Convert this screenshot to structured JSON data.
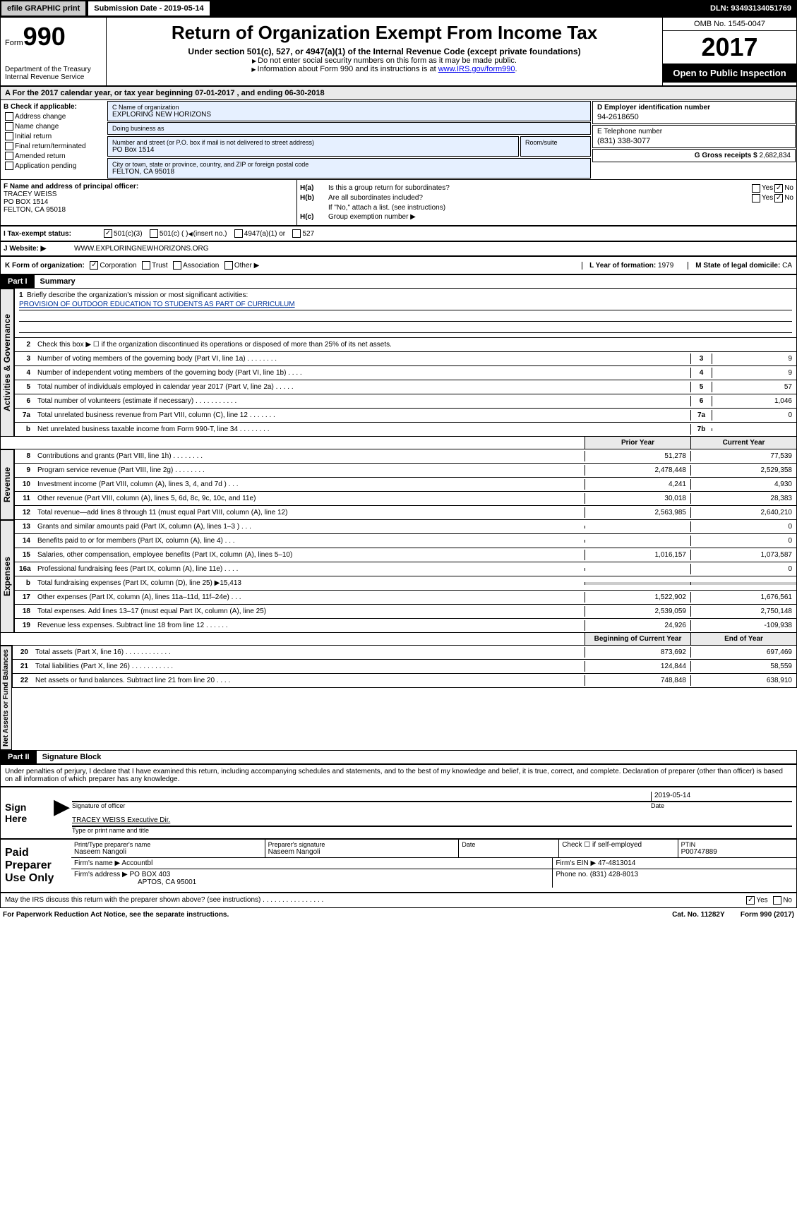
{
  "topbar": {
    "efile": "efile GRAPHIC print",
    "sub": "Submission Date - 2019-05-14",
    "dln": "DLN: 93493134051769"
  },
  "header": {
    "form_label": "Form",
    "form_num": "990",
    "dept": "Department of the Treasury\nInternal Revenue Service",
    "title": "Return of Organization Exempt From Income Tax",
    "sub1": "Under section 501(c), 527, or 4947(a)(1) of the Internal Revenue Code (except private foundations)",
    "sub2a": "Do not enter social security numbers on this form as it may be made public.",
    "sub2b": "Information about Form 990 and its instructions is at ",
    "link": "www.IRS.gov/form990",
    "omb": "OMB No. 1545-0047",
    "year": "2017",
    "open": "Open to Public Inspection"
  },
  "row_a": "A   For the 2017 calendar year, or tax year beginning 07-01-2017       , and ending 06-30-2018",
  "col_b": {
    "title": "B Check if applicable:",
    "items": [
      "Address change",
      "Name change",
      "Initial return",
      "Final return/terminated",
      "Amended return",
      "Application pending"
    ]
  },
  "col_c": {
    "name_lbl": "C Name of organization",
    "name": "EXPLORING NEW HORIZONS",
    "dba_lbl": "Doing business as",
    "dba": "",
    "addr_lbl": "Number and street (or P.O. box if mail is not delivered to street address)",
    "room_lbl": "Room/suite",
    "addr": "PO Box 1514",
    "city_lbl": "City or town, state or province, country, and ZIP or foreign postal code",
    "city": "FELTON, CA  95018"
  },
  "col_d": {
    "ein_lbl": "D Employer identification number",
    "ein": "94-2618650",
    "tel_lbl": "E Telephone number",
    "tel": "(831) 338-3077",
    "gross_lbl": "G Gross receipts $",
    "gross": "2,682,834"
  },
  "col_f": {
    "lbl": "F Name and address of principal officer:",
    "name": "TRACEY WEISS",
    "addr1": "PO BOX 1514",
    "addr2": "FELTON, CA  95018"
  },
  "col_h": {
    "ha_lbl": "H(a)",
    "ha_txt": "Is this a group return for subordinates?",
    "hb_lbl": "H(b)",
    "hb_txt": "Are all subordinates included?",
    "hb_note": "If \"No,\" attach a list. (see instructions)",
    "hc_lbl": "H(c)",
    "hc_txt": "Group exemption number ▶",
    "yes": "Yes",
    "no": "No"
  },
  "row_i": {
    "lbl": "I     Tax-exempt status:",
    "o1": "501(c)(3)",
    "o2": "501(c) (  )",
    "o2b": "(insert no.)",
    "o3": "4947(a)(1) or",
    "o4": "527"
  },
  "row_j": {
    "lbl": "J    Website: ▶",
    "val": "WWW.EXPLORINGNEWHORIZONS.ORG"
  },
  "row_k": {
    "lbl": "K Form of organization:",
    "o1": "Corporation",
    "o2": "Trust",
    "o3": "Association",
    "o4": "Other ▶",
    "l_lbl": "L Year of formation:",
    "l_val": "1979",
    "m_lbl": "M State of legal domicile:",
    "m_val": "CA"
  },
  "part1": {
    "hdr": "Part I",
    "title": "Summary",
    "vert1": "Activities & Governance",
    "vert2": "Revenue",
    "vert3": "Expenses",
    "vert4": "Net Assets or Fund Balances",
    "line1_lbl": "Briefly describe the organization's mission or most significant activities:",
    "line1_val": "PROVISION OF OUTDOOR EDUCATION TO STUDENTS AS PART OF CURRICULUM",
    "line2": "Check this box ▶ ☐  if the organization discontinued its operations or disposed of more than 25% of its net assets.",
    "lines_ag": [
      {
        "n": "3",
        "t": "Number of voting members of the governing body (Part VI, line 1a)   .     .     .     .     .     .     .     .",
        "c": "3",
        "v": "9"
      },
      {
        "n": "4",
        "t": "Number of independent voting members of the governing body (Part VI, line 1b)    .     .     .     .",
        "c": "4",
        "v": "9"
      },
      {
        "n": "5",
        "t": "Total number of individuals employed in calendar year 2017 (Part V, line 2a)    .     .     .     .     .",
        "c": "5",
        "v": "57"
      },
      {
        "n": "6",
        "t": "Total number of volunteers (estimate if necessary)    .     .     .     .     .     .     .     .     .     .     .",
        "c": "6",
        "v": "1,046"
      },
      {
        "n": "7a",
        "t": "Total unrelated business revenue from Part VIII, column (C), line 12    .     .     .     .     .     .     .",
        "c": "7a",
        "v": "0"
      },
      {
        "n": "b",
        "t": "Net unrelated business taxable income from Form 990-T, line 34    .     .     .     .     .     .     .     .",
        "c": "7b",
        "v": ""
      }
    ],
    "hdr_prior": "Prior Year",
    "hdr_curr": "Current Year",
    "lines_rev": [
      {
        "n": "8",
        "t": "Contributions and grants (Part VIII, line 1h)    .     .     .     .     .     .     .     .",
        "p": "51,278",
        "c": "77,539"
      },
      {
        "n": "9",
        "t": "Program service revenue (Part VIII, line 2g)    .     .     .     .     .     .     .     .",
        "p": "2,478,448",
        "c": "2,529,358"
      },
      {
        "n": "10",
        "t": "Investment income (Part VIII, column (A), lines 3, 4, and 7d )    .     .     .",
        "p": "4,241",
        "c": "4,930"
      },
      {
        "n": "11",
        "t": "Other revenue (Part VIII, column (A), lines 5, 6d, 8c, 9c, 10c, and 11e)",
        "p": "30,018",
        "c": "28,383"
      },
      {
        "n": "12",
        "t": "Total revenue—add lines 8 through 11 (must equal Part VIII, column (A), line 12)",
        "p": "2,563,985",
        "c": "2,640,210"
      }
    ],
    "lines_exp": [
      {
        "n": "13",
        "t": "Grants and similar amounts paid (Part IX, column (A), lines 1–3 )    .     .     .",
        "p": "",
        "c": "0"
      },
      {
        "n": "14",
        "t": "Benefits paid to or for members (Part IX, column (A), line 4)    .     .     .",
        "p": "",
        "c": "0"
      },
      {
        "n": "15",
        "t": "Salaries, other compensation, employee benefits (Part IX, column (A), lines 5–10)",
        "p": "1,016,157",
        "c": "1,073,587"
      },
      {
        "n": "16a",
        "t": "Professional fundraising fees (Part IX, column (A), line 11e)    .     .     .     .",
        "p": "",
        "c": "0"
      },
      {
        "n": "b",
        "t": "Total fundraising expenses (Part IX, column (D), line 25) ▶15,413",
        "p": "grey",
        "c": "grey"
      },
      {
        "n": "17",
        "t": "Other expenses (Part IX, column (A), lines 11a–11d, 11f–24e)    .     .     .",
        "p": "1,522,902",
        "c": "1,676,561"
      },
      {
        "n": "18",
        "t": "Total expenses. Add lines 13–17 (must equal Part IX, column (A), line 25)",
        "p": "2,539,059",
        "c": "2,750,148"
      },
      {
        "n": "19",
        "t": "Revenue less expenses. Subtract line 18 from line 12    .     .     .     .     .     .",
        "p": "24,926",
        "c": "-109,938"
      }
    ],
    "hdr_beg": "Beginning of Current Year",
    "hdr_end": "End of Year",
    "lines_na": [
      {
        "n": "20",
        "t": "Total assets (Part X, line 16)    .     .     .     .     .     .     .     .     .     .     .     .",
        "p": "873,692",
        "c": "697,469"
      },
      {
        "n": "21",
        "t": "Total liabilities (Part X, line 26)    .     .     .     .     .     .     .     .     .     .     .",
        "p": "124,844",
        "c": "58,559"
      },
      {
        "n": "22",
        "t": "Net assets or fund balances. Subtract line 21 from line 20    .     .     .     .",
        "p": "748,848",
        "c": "638,910"
      }
    ]
  },
  "part2": {
    "hdr": "Part II",
    "title": "Signature Block",
    "decl": "Under penalties of perjury, I declare that I have examined this return, including accompanying schedules and statements, and to the best of my knowledge and belief, it is true, correct, and complete. Declaration of preparer (other than officer) is based on all information of which preparer has any knowledge.",
    "sign_here": "Sign Here",
    "sig_of": "Signature of officer",
    "date": "Date",
    "date_val": "2019-05-14",
    "name": "TRACEY WEISS  Executive Dir.",
    "name_lbl": "Type or print name and title",
    "paid": "Paid Preparer Use Only",
    "prep_name_lbl": "Print/Type preparer's name",
    "prep_name": "Naseem Nangoli",
    "prep_sig_lbl": "Preparer's signature",
    "prep_sig": "Naseem Nangoli",
    "prep_date_lbl": "Date",
    "check_lbl": "Check ☐ if self-employed",
    "ptin_lbl": "PTIN",
    "ptin": "P00747889",
    "firm_name_lbl": "Firm's name     ▶",
    "firm_name": "Accountbl",
    "firm_ein_lbl": "Firm's EIN ▶",
    "firm_ein": "47-4813014",
    "firm_addr_lbl": "Firm's address ▶",
    "firm_addr": "PO BOX 403",
    "firm_addr2": "APTOS, CA  95001",
    "phone_lbl": "Phone no.",
    "phone": "(831) 428-8013",
    "discuss": "May the IRS discuss this return with the preparer shown above? (see instructions)    .     .     .     .     .     .     .     .     .     .     .     .     .     .     .     .",
    "yes": "Yes",
    "no": "No"
  },
  "footer": {
    "left": "For Paperwork Reduction Act Notice, see the separate instructions.",
    "mid": "Cat. No. 11282Y",
    "right": "Form 990 (2017)"
  }
}
